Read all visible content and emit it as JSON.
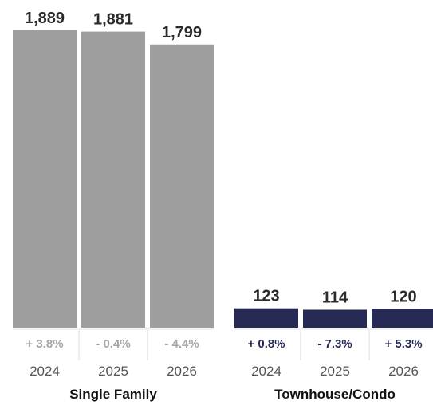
{
  "chart_data": {
    "type": "bar",
    "groups": [
      {
        "name": "Single Family",
        "color": "#9e9e9e",
        "pct_color": "#a6a6a6",
        "bars": [
          {
            "year": "2024",
            "value": 1889,
            "value_label": "1,889",
            "change": "+ 3.8%"
          },
          {
            "year": "2025",
            "value": 1881,
            "value_label": "1,881",
            "change": "- 0.4%"
          },
          {
            "year": "2026",
            "value": 1799,
            "value_label": "1,799",
            "change": "- 4.4%"
          }
        ]
      },
      {
        "name": "Townhouse/Condo",
        "color": "#262a55",
        "pct_color": "#262a55",
        "bars": [
          {
            "year": "2024",
            "value": 123,
            "value_label": "123",
            "change": "+ 0.8%"
          },
          {
            "year": "2025",
            "value": 114,
            "value_label": "114",
            "change": "- 7.3%"
          },
          {
            "year": "2026",
            "value": 120,
            "value_label": "120",
            "change": "+ 5.3%"
          }
        ]
      }
    ],
    "ylim": [
      0,
      1889
    ],
    "grid": false
  }
}
